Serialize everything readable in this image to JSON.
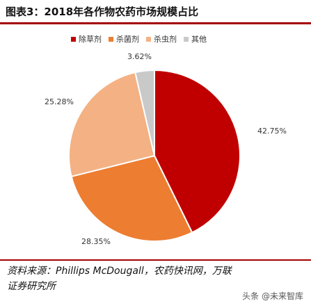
{
  "title": "图表3：2018年各作物农药市场规模占比",
  "source": "资料来源：Phillips McDougall，农药快讯网，万联证券研究所",
  "watermark": "头条 @未来智库",
  "chart_data": {
    "type": "pie",
    "labels": [
      "除草剂",
      "杀菌剂",
      "杀虫剂",
      "其他"
    ],
    "values": [
      42.75,
      28.35,
      25.28,
      3.62
    ],
    "value_labels": [
      "42.75%",
      "28.35%",
      "25.28%",
      "3.62%"
    ],
    "colors": [
      "#c00000",
      "#ed7d31",
      "#f4b183",
      "#c9c9c9"
    ],
    "start_angle_deg": 0,
    "direction": "clockwise",
    "legend_position": "top"
  }
}
